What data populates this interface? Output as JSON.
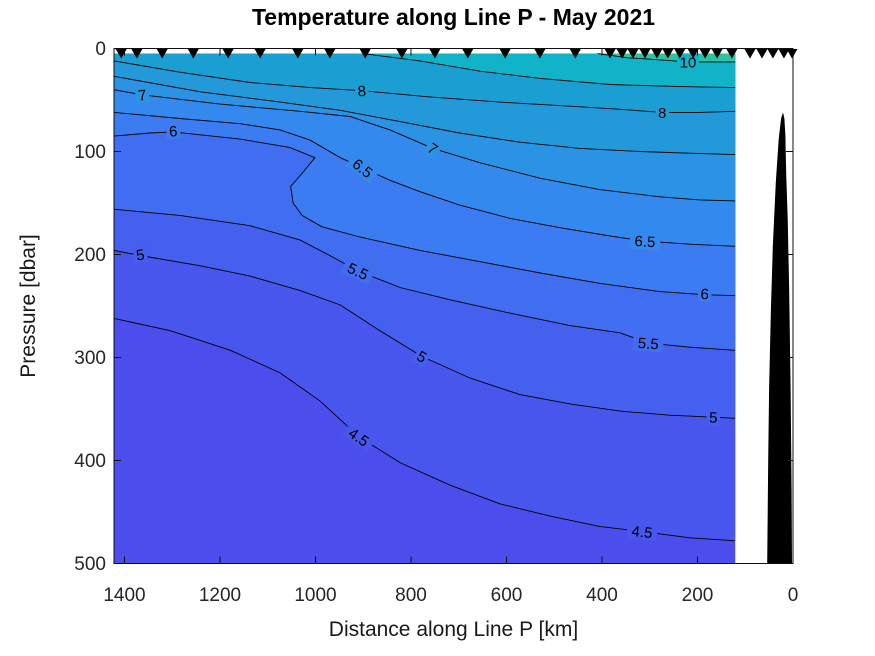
{
  "chart_data": {
    "type": "filled_contour_section",
    "title": "Temperature along Line P - May 2021",
    "xlabel": "Distance along Line P [km]",
    "ylabel": "Pressure [dbar]",
    "x_ticks": [
      1400,
      1200,
      1000,
      800,
      600,
      400,
      200,
      0
    ],
    "y_ticks": [
      0,
      100,
      200,
      300,
      400,
      500
    ],
    "x_range_km": [
      0,
      1422
    ],
    "y_range_dbar": [
      0,
      500
    ],
    "x_axis_reversed": true,
    "grid": false,
    "data_top_dbar": 5,
    "data_min_km": 121,
    "base_band": {
      "range": "<4.5",
      "color": "#4b4ded"
    },
    "contour_levels_degC": [
      4.5,
      5,
      5.5,
      6,
      6.5,
      7,
      7.5,
      8,
      9,
      10
    ],
    "labeled_levels": [
      4.5,
      5,
      5.5,
      6,
      6.5,
      7,
      8,
      10
    ],
    "contours": [
      {
        "level": 4.5,
        "band_above": "#4856ee",
        "points": [
          [
            1422,
            262
          ],
          [
            1304,
            274
          ],
          [
            1178,
            293
          ],
          [
            1074,
            315
          ],
          [
            991,
            342
          ],
          [
            909,
            377
          ],
          [
            823,
            402
          ],
          [
            718,
            424
          ],
          [
            614,
            442
          ],
          [
            509,
            454
          ],
          [
            405,
            464
          ],
          [
            316,
            469
          ],
          [
            216,
            475
          ],
          [
            121,
            478
          ]
        ]
      },
      {
        "level": 5,
        "band_above": "#4560ef",
        "points": [
          [
            1422,
            196
          ],
          [
            1367,
            201
          ],
          [
            1241,
            211
          ],
          [
            1137,
            221
          ],
          [
            1032,
            235
          ],
          [
            948,
            249
          ],
          [
            865,
            274
          ],
          [
            777,
            299
          ],
          [
            676,
            320
          ],
          [
            572,
            336
          ],
          [
            467,
            345
          ],
          [
            362,
            352
          ],
          [
            258,
            356
          ],
          [
            167,
            358
          ],
          [
            121,
            359
          ]
        ]
      },
      {
        "level": 5.5,
        "band_above": "#416df1",
        "points": [
          [
            1422,
            156
          ],
          [
            1284,
            162
          ],
          [
            1137,
            172
          ],
          [
            1032,
            186
          ],
          [
            970,
            201
          ],
          [
            911,
            216
          ],
          [
            823,
            232
          ],
          [
            718,
            244
          ],
          [
            592,
            257
          ],
          [
            467,
            269
          ],
          [
            362,
            276
          ],
          [
            303,
            286
          ],
          [
            216,
            290
          ],
          [
            121,
            293
          ]
        ]
      },
      {
        "level": 6,
        "band_above": "#3c7cf2",
        "points": [
          [
            1422,
            85
          ],
          [
            1347,
            82
          ],
          [
            1298,
            81
          ],
          [
            1158,
            88
          ],
          [
            1054,
            96
          ],
          [
            1001,
            106
          ],
          [
            1026,
            120
          ],
          [
            1052,
            134
          ],
          [
            1047,
            150
          ],
          [
            1028,
            162
          ],
          [
            987,
            173
          ],
          [
            907,
            183
          ],
          [
            781,
            196
          ],
          [
            655,
            207
          ],
          [
            529,
            218
          ],
          [
            405,
            228
          ],
          [
            279,
            236
          ],
          [
            185,
            239
          ],
          [
            121,
            240
          ]
        ]
      },
      {
        "level": 6.5,
        "band_above": "#3389ee",
        "points": [
          [
            1422,
            62
          ],
          [
            1284,
            68
          ],
          [
            1158,
            73
          ],
          [
            1074,
            79
          ],
          [
            1011,
            89
          ],
          [
            948,
            106
          ],
          [
            901,
            116
          ],
          [
            844,
            128
          ],
          [
            781,
            139
          ],
          [
            698,
            152
          ],
          [
            592,
            165
          ],
          [
            488,
            174
          ],
          [
            383,
            182
          ],
          [
            310,
            187
          ],
          [
            216,
            190
          ],
          [
            121,
            192
          ]
        ]
      },
      {
        "level": 7,
        "band_above": "#2b93e4",
        "points": [
          [
            1422,
            40
          ],
          [
            1363,
            45
          ],
          [
            1200,
            54
          ],
          [
            1032,
            61
          ],
          [
            928,
            66
          ],
          [
            844,
            79
          ],
          [
            754,
            97
          ],
          [
            655,
            111
          ],
          [
            529,
            126
          ],
          [
            405,
            137
          ],
          [
            279,
            144
          ],
          [
            195,
            147
          ],
          [
            121,
            148
          ]
        ]
      },
      {
        "level": 7.5,
        "band_above": "#2399da",
        "points": [
          [
            1422,
            27
          ],
          [
            1241,
            42
          ],
          [
            1074,
            52
          ],
          [
            948,
            60
          ],
          [
            823,
            71
          ],
          [
            698,
            82
          ],
          [
            572,
            91
          ],
          [
            446,
            97
          ],
          [
            320,
            100
          ],
          [
            195,
            102
          ],
          [
            121,
            103
          ]
        ]
      },
      {
        "level": 8,
        "band_above": "#1b9fd2",
        "points": [
          [
            1422,
            12
          ],
          [
            1284,
            23
          ],
          [
            1137,
            33
          ],
          [
            1011,
            38
          ],
          [
            903,
            41
          ],
          [
            761,
            47
          ],
          [
            614,
            52
          ],
          [
            467,
            56
          ],
          [
            362,
            59
          ],
          [
            274,
            62
          ],
          [
            195,
            62
          ],
          [
            121,
            61
          ]
        ]
      },
      {
        "level": 9,
        "band_above": "#10b3c7",
        "points": [
          [
            901,
            5
          ],
          [
            781,
            12
          ],
          [
            655,
            22
          ],
          [
            529,
            29
          ],
          [
            383,
            35
          ],
          [
            236,
            37
          ],
          [
            121,
            38
          ]
        ]
      },
      {
        "level": 10,
        "band_above": "#2cc3a2",
        "points": [
          [
            409,
            5
          ],
          [
            345,
            9
          ],
          [
            280,
            11
          ],
          [
            220,
            13
          ],
          [
            121,
            13
          ]
        ]
      }
    ],
    "contour_labels": [
      {
        "text": "7",
        "km": 1363,
        "dbar": 45,
        "rot": -8,
        "bg": "#2b93e4"
      },
      {
        "text": "8",
        "km": 903,
        "dbar": 41,
        "rot": -5,
        "bg": "#1b9fd2"
      },
      {
        "text": "10",
        "km": 220,
        "dbar": 13,
        "rot": 0,
        "bg": "#10b3c7"
      },
      {
        "text": "8",
        "km": 274,
        "dbar": 62,
        "rot": 0,
        "bg": "#1d9dd6"
      },
      {
        "text": "6",
        "km": 1298,
        "dbar": 80,
        "rot": -5,
        "bg": "#3c7cf2"
      },
      {
        "text": "6.5",
        "km": 901,
        "dbar": 116,
        "rot": 38,
        "bg": "#3389ee"
      },
      {
        "text": "7",
        "km": 754,
        "dbar": 97,
        "rot": 35,
        "bg": "#2b93e4"
      },
      {
        "text": "6.5",
        "km": 310,
        "dbar": 187,
        "rot": 3,
        "bg": "#3389ee"
      },
      {
        "text": "6",
        "km": 185,
        "dbar": 238,
        "rot": 2,
        "bg": "#3c7cf2"
      },
      {
        "text": "5.5",
        "km": 911,
        "dbar": 216,
        "rot": 25,
        "bg": "#416df1"
      },
      {
        "text": "5.5",
        "km": 303,
        "dbar": 286,
        "rot": 4,
        "bg": "#416df1"
      },
      {
        "text": "5",
        "km": 1367,
        "dbar": 200,
        "rot": -8,
        "bg": "#4a5cee"
      },
      {
        "text": "5",
        "km": 777,
        "dbar": 299,
        "rot": 30,
        "bg": "#4560ef"
      },
      {
        "text": "5",
        "km": 167,
        "dbar": 358,
        "rot": 2,
        "bg": "#4560ef"
      },
      {
        "text": "4.5",
        "km": 909,
        "dbar": 377,
        "rot": 35,
        "bg": "#4856ee"
      },
      {
        "text": "4.5",
        "km": 316,
        "dbar": 469,
        "rot": 6,
        "bg": "#4856ee"
      }
    ],
    "station_markers_km": [
      1407,
      1374,
      1321,
      1256,
      1183,
      1116,
      1037,
      970,
      896,
      819,
      750,
      681,
      603,
      530,
      456,
      383,
      358,
      335,
      310,
      285,
      262,
      237,
      209,
      184,
      159,
      128,
      90,
      65,
      42,
      19,
      2
    ],
    "bathymetry_km_dbar": [
      [
        54,
        500
      ],
      [
        52,
        400
      ],
      [
        50,
        330
      ],
      [
        46,
        250
      ],
      [
        42,
        190
      ],
      [
        36,
        130
      ],
      [
        30,
        88
      ],
      [
        25,
        68
      ],
      [
        21,
        62
      ],
      [
        18,
        68
      ],
      [
        16,
        85
      ],
      [
        15,
        105
      ],
      [
        14,
        125
      ],
      [
        11,
        165
      ],
      [
        8,
        235
      ],
      [
        5,
        330
      ],
      [
        3,
        430
      ],
      [
        2,
        500
      ]
    ],
    "colors": {
      "contour_line": "#000000",
      "axis": "#0f0f0f",
      "tick_label": "#262626",
      "station_marker": "#000000",
      "bathymetry": "#000000",
      "background": "#ffffff"
    }
  }
}
